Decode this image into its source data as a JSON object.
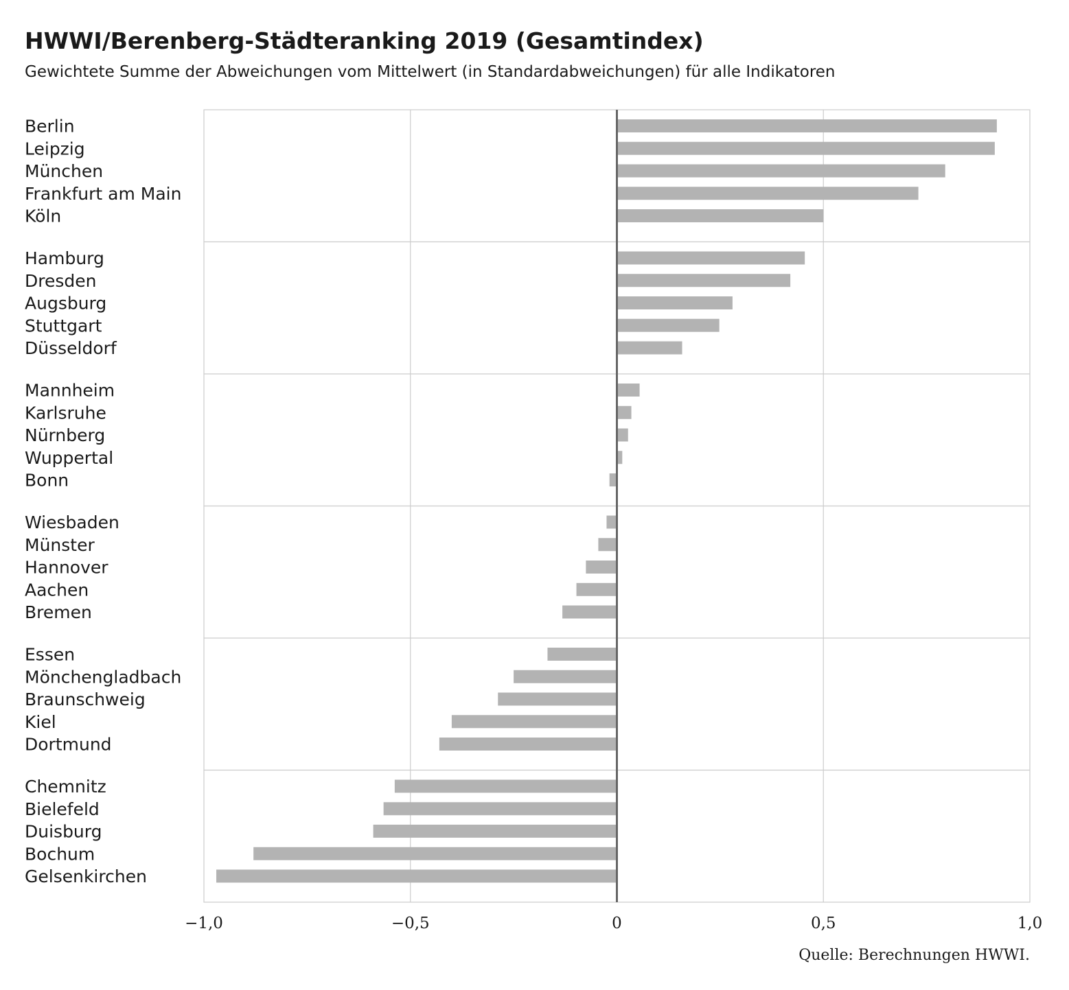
{
  "chart_data": {
    "type": "bar",
    "orientation": "horizontal",
    "title": "HWWI/Berenberg-Städteranking 2019 (Gesamtindex)",
    "subtitle": "Gewichtete Summe der Abweichungen vom Mittelwert (in Standardabweichungen) für alle Indikatoren",
    "source": "Quelle: Berechnungen HWWI.",
    "xlim": [
      -1.0,
      1.0
    ],
    "x_ticks": [
      -1.0,
      -0.5,
      0,
      0.5,
      1.0
    ],
    "x_tick_labels": [
      "−1,0",
      "−0,5",
      "0",
      "0,5",
      "1,0"
    ],
    "grid": true,
    "bar_color": "#b3b3b3",
    "zero_line_color": "#666666",
    "group_size": 5,
    "categories": [
      "Berlin",
      "Leipzig",
      "München",
      "Frankfurt am Main",
      "Köln",
      "Hamburg",
      "Dresden",
      "Augsburg",
      "Stuttgart",
      "Düsseldorf",
      "Mannheim",
      "Karlsruhe",
      "Nürnberg",
      "Wuppertal",
      "Bonn",
      "Wiesbaden",
      "Münster",
      "Hannover",
      "Aachen",
      "Bremen",
      "Essen",
      "Mönchengladbach",
      "Braunschweig",
      "Kiel",
      "Dortmund",
      "Chemnitz",
      "Bielefeld",
      "Duisburg",
      "Bochum",
      "Gelsenkirchen"
    ],
    "values": [
      0.92,
      0.915,
      0.795,
      0.73,
      0.5,
      0.455,
      0.42,
      0.28,
      0.248,
      0.158,
      0.055,
      0.035,
      0.027,
      0.013,
      -0.018,
      -0.025,
      -0.045,
      -0.075,
      -0.098,
      -0.132,
      -0.168,
      -0.25,
      -0.288,
      -0.4,
      -0.43,
      -0.538,
      -0.565,
      -0.59,
      -0.88,
      -0.97
    ]
  }
}
